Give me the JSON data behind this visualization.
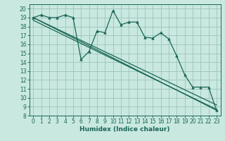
{
  "xlabel": "Humidex (Indice chaleur)",
  "bg_color": "#c8e8e0",
  "grid_color": "#9cc4bc",
  "line_color": "#1a6655",
  "xlim": [
    -0.5,
    23.5
  ],
  "ylim": [
    8,
    20.5
  ],
  "xticks": [
    0,
    1,
    2,
    3,
    4,
    5,
    6,
    7,
    8,
    9,
    10,
    11,
    12,
    13,
    14,
    15,
    16,
    17,
    18,
    19,
    20,
    21,
    22,
    23
  ],
  "yticks": [
    8,
    9,
    10,
    11,
    12,
    13,
    14,
    15,
    16,
    17,
    18,
    19,
    20
  ],
  "series1_x": [
    0,
    1,
    2,
    3,
    4,
    5,
    6,
    7,
    8,
    9,
    10,
    11,
    12,
    13,
    14,
    15,
    16,
    17,
    18,
    19,
    20,
    21,
    22,
    23
  ],
  "series1_y": [
    19.0,
    19.3,
    19.0,
    19.0,
    19.3,
    19.0,
    14.3,
    15.2,
    17.5,
    17.3,
    19.8,
    18.2,
    18.5,
    18.5,
    16.8,
    16.7,
    17.3,
    16.6,
    14.7,
    12.6,
    11.2,
    11.2,
    11.2,
    8.6
  ],
  "trend1_x": [
    0,
    23
  ],
  "trend1_y": [
    19.0,
    8.6
  ],
  "trend2_x": [
    0,
    23
  ],
  "trend2_y": [
    18.7,
    8.7
  ],
  "trend3_x": [
    0,
    23
  ],
  "trend3_y": [
    19.0,
    9.2
  ],
  "tick_fontsize": 5.5,
  "xlabel_fontsize": 6.5
}
